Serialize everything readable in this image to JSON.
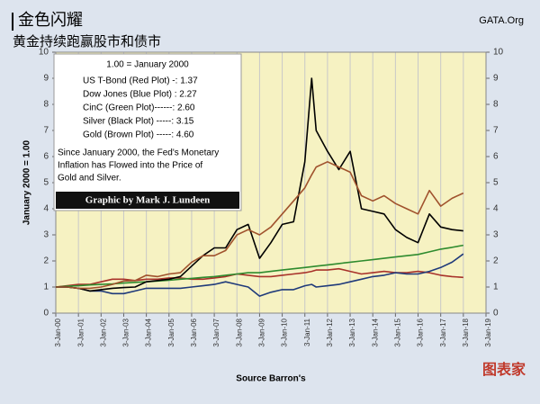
{
  "chart_data": {
    "type": "line",
    "title": "金色闪耀",
    "subtitle": "黄金持续跑赢股市和债市",
    "source": "GATA.Org",
    "box_title": "1.00 = January 2000",
    "note": [
      "Since January 2000, the Fed's Monetary",
      "Inflation has Flowed into the Price of",
      "Gold and Silver."
    ],
    "credit": "Graphic by Mark J. Lundeen",
    "y_label": "January 2000 = 1.00",
    "x_label": "Source Barron's",
    "logo": "图表家",
    "grid": true,
    "xlim": [
      2000,
      2019
    ],
    "xticks": [
      {
        "value": 2000,
        "label": "3-Jan-00"
      },
      {
        "value": 2001,
        "label": "3-Jan-01"
      },
      {
        "value": 2002,
        "label": "3-Jan-02"
      },
      {
        "value": 2003,
        "label": "3-Jan-03"
      },
      {
        "value": 2004,
        "label": "3-Jan-04"
      },
      {
        "value": 2005,
        "label": "3-Jan-05"
      },
      {
        "value": 2006,
        "label": "3-Jan-06"
      },
      {
        "value": 2007,
        "label": "3-Jan-07"
      },
      {
        "value": 2008,
        "label": "3-Jan-08"
      },
      {
        "value": 2009,
        "label": "3-Jan-09"
      },
      {
        "value": 2010,
        "label": "3-Jan-10"
      },
      {
        "value": 2011,
        "label": "3-Jan-11"
      },
      {
        "value": 2012,
        "label": "3-Jan-12"
      },
      {
        "value": 2013,
        "label": "3-Jan-13"
      },
      {
        "value": 2014,
        "label": "3-Jan-14"
      },
      {
        "value": 2015,
        "label": "3-Jan-15"
      },
      {
        "value": 2016,
        "label": "3-Jan-16"
      },
      {
        "value": 2017,
        "label": "3-Jan-17"
      },
      {
        "value": 2018,
        "label": "3-Jan-18"
      },
      {
        "value": 2019,
        "label": "3-Jan-19"
      }
    ],
    "ylim": [
      0,
      10
    ],
    "yticks": [
      0,
      1,
      2,
      3,
      4,
      5,
      6,
      7,
      8,
      9,
      10
    ],
    "y2lim": [
      0,
      10
    ],
    "y2ticks": [
      0,
      1,
      2,
      3,
      4,
      5,
      6,
      7,
      8,
      9,
      10
    ],
    "x": [
      2000,
      2000.5,
      2001,
      2001.5,
      2002,
      2002.5,
      2003,
      2003.5,
      2004,
      2004.5,
      2005,
      2005.5,
      2006,
      2006.5,
      2007,
      2007.5,
      2008,
      2008.5,
      2009,
      2009.5,
      2010,
      2010.5,
      2011,
      2011.3,
      2011.5,
      2012,
      2012.5,
      2013,
      2013.5,
      2014,
      2014.5,
      2015,
      2015.5,
      2016,
      2016.5,
      2017,
      2017.5,
      2018
    ],
    "series": [
      {
        "name": "US T-Bond (Red Plot) -: 1.37",
        "color": "#a8322a",
        "values": [
          1.0,
          1.05,
          1.1,
          1.1,
          1.2,
          1.3,
          1.3,
          1.25,
          1.3,
          1.3,
          1.35,
          1.35,
          1.3,
          1.3,
          1.35,
          1.4,
          1.5,
          1.45,
          1.4,
          1.4,
          1.45,
          1.5,
          1.55,
          1.6,
          1.65,
          1.65,
          1.7,
          1.6,
          1.5,
          1.55,
          1.6,
          1.55,
          1.55,
          1.6,
          1.55,
          1.45,
          1.4,
          1.37
        ]
      },
      {
        "name": "Dow Jones (Blue Plot) : 2.27",
        "color": "#1f3a7a",
        "values": [
          1.0,
          1.0,
          0.95,
          0.85,
          0.85,
          0.75,
          0.75,
          0.85,
          0.95,
          0.95,
          0.95,
          0.95,
          1.0,
          1.05,
          1.1,
          1.2,
          1.1,
          1.0,
          0.65,
          0.8,
          0.9,
          0.9,
          1.05,
          1.1,
          1.0,
          1.05,
          1.1,
          1.2,
          1.3,
          1.4,
          1.45,
          1.55,
          1.5,
          1.5,
          1.6,
          1.75,
          1.95,
          2.27
        ]
      },
      {
        "name": "CinC (Green Plot)------: 2.60",
        "color": "#2e8b2e",
        "values": [
          1.0,
          1.03,
          1.05,
          1.08,
          1.1,
          1.12,
          1.15,
          1.18,
          1.2,
          1.23,
          1.26,
          1.3,
          1.33,
          1.37,
          1.4,
          1.45,
          1.5,
          1.55,
          1.55,
          1.6,
          1.65,
          1.7,
          1.75,
          1.78,
          1.8,
          1.85,
          1.9,
          1.95,
          2.0,
          2.05,
          2.1,
          2.15,
          2.2,
          2.25,
          2.35,
          2.45,
          2.52,
          2.6
        ]
      },
      {
        "name": "Silver (Black Plot) -----: 3.15",
        "color": "#000000",
        "values": [
          1.0,
          1.0,
          0.95,
          0.85,
          0.9,
          0.95,
          0.98,
          1.0,
          1.2,
          1.25,
          1.3,
          1.4,
          1.8,
          2.2,
          2.5,
          2.5,
          3.2,
          3.4,
          2.1,
          2.7,
          3.4,
          3.5,
          5.8,
          9.0,
          7.0,
          6.2,
          5.5,
          6.2,
          4.0,
          3.9,
          3.8,
          3.2,
          2.9,
          2.7,
          3.8,
          3.3,
          3.2,
          3.15
        ]
      },
      {
        "name": "Gold (Brown Plot) -----: 4.60",
        "color": "#a0522d",
        "values": [
          1.0,
          1.0,
          0.95,
          0.95,
          1.0,
          1.1,
          1.23,
          1.25,
          1.45,
          1.4,
          1.5,
          1.55,
          1.95,
          2.2,
          2.2,
          2.4,
          3.0,
          3.2,
          3.0,
          3.3,
          3.8,
          4.3,
          4.8,
          5.3,
          5.6,
          5.8,
          5.6,
          5.4,
          4.5,
          4.3,
          4.5,
          4.2,
          4.0,
          3.8,
          4.7,
          4.1,
          4.4,
          4.6
        ]
      }
    ]
  }
}
